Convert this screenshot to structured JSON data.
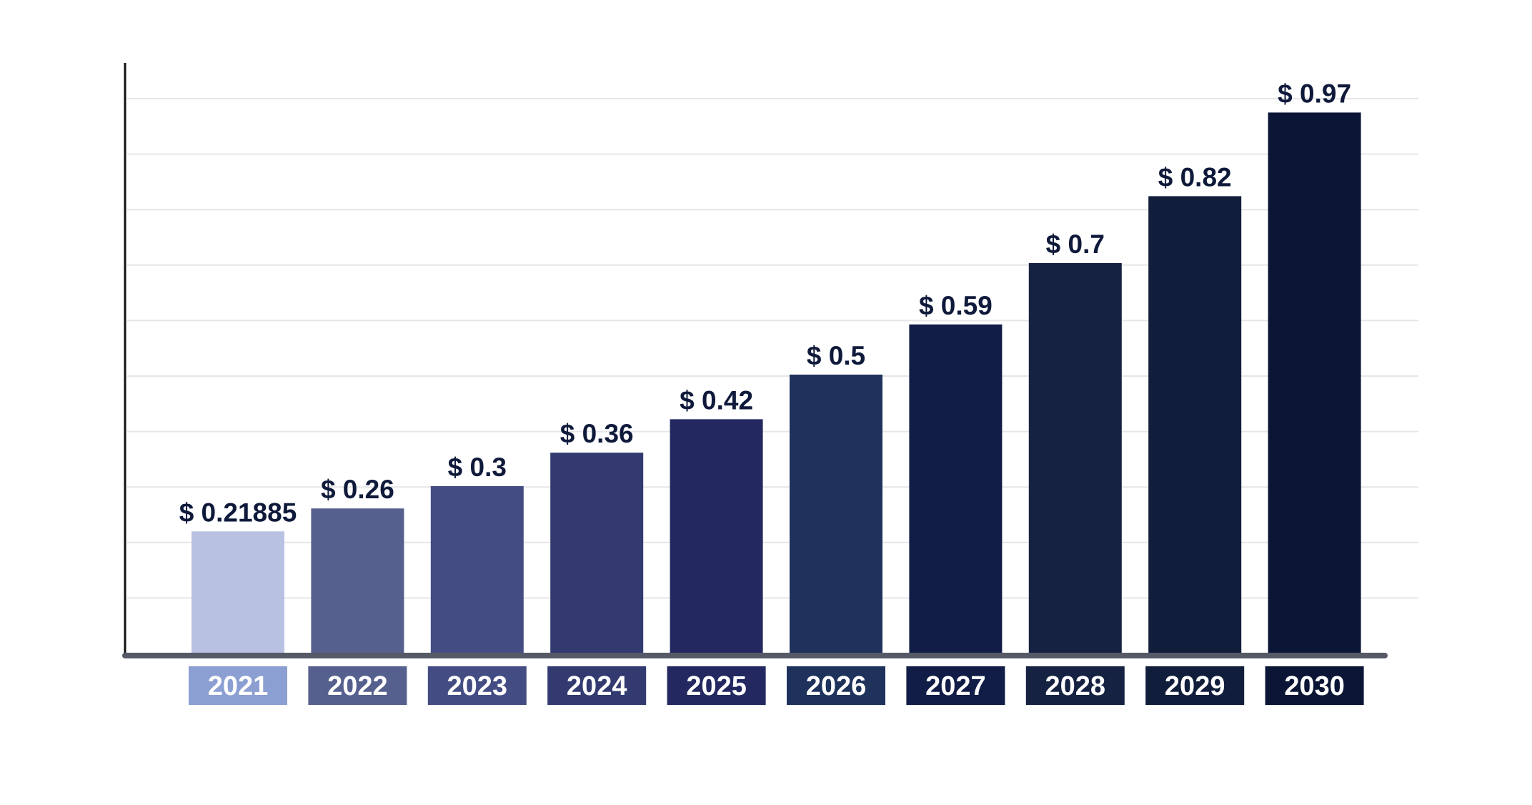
{
  "chart_data": {
    "type": "bar",
    "title": "",
    "xlabel": "",
    "ylabel": "",
    "categories": [
      "2021",
      "2022",
      "2023",
      "2024",
      "2025",
      "2026",
      "2027",
      "2028",
      "2029",
      "2030"
    ],
    "values": [
      0.21885,
      0.26,
      0.3,
      0.36,
      0.42,
      0.5,
      0.59,
      0.7,
      0.82,
      0.97
    ],
    "value_labels": [
      "$ 0.21885",
      "$ 0.26",
      "$ 0.3",
      "$ 0.36",
      "$ 0.42",
      "$ 0.5",
      "$ 0.59",
      "$ 0.7",
      "$ 0.82",
      "$ 0.97"
    ],
    "bar_colors": [
      "#b8c1e2",
      "#56608e",
      "#444d83",
      "#323a70",
      "#232960",
      "#1e325c",
      "#111d46",
      "#152242",
      "#111e3b",
      "#0b1535"
    ],
    "label_box_colors": [
      "#8c9fd2",
      "#56608e",
      "#444d83",
      "#323a70",
      "#232960",
      "#1e325c",
      "#111d46",
      "#152242",
      "#111e3b",
      "#0b1535"
    ],
    "grid": true,
    "legend": "none"
  }
}
